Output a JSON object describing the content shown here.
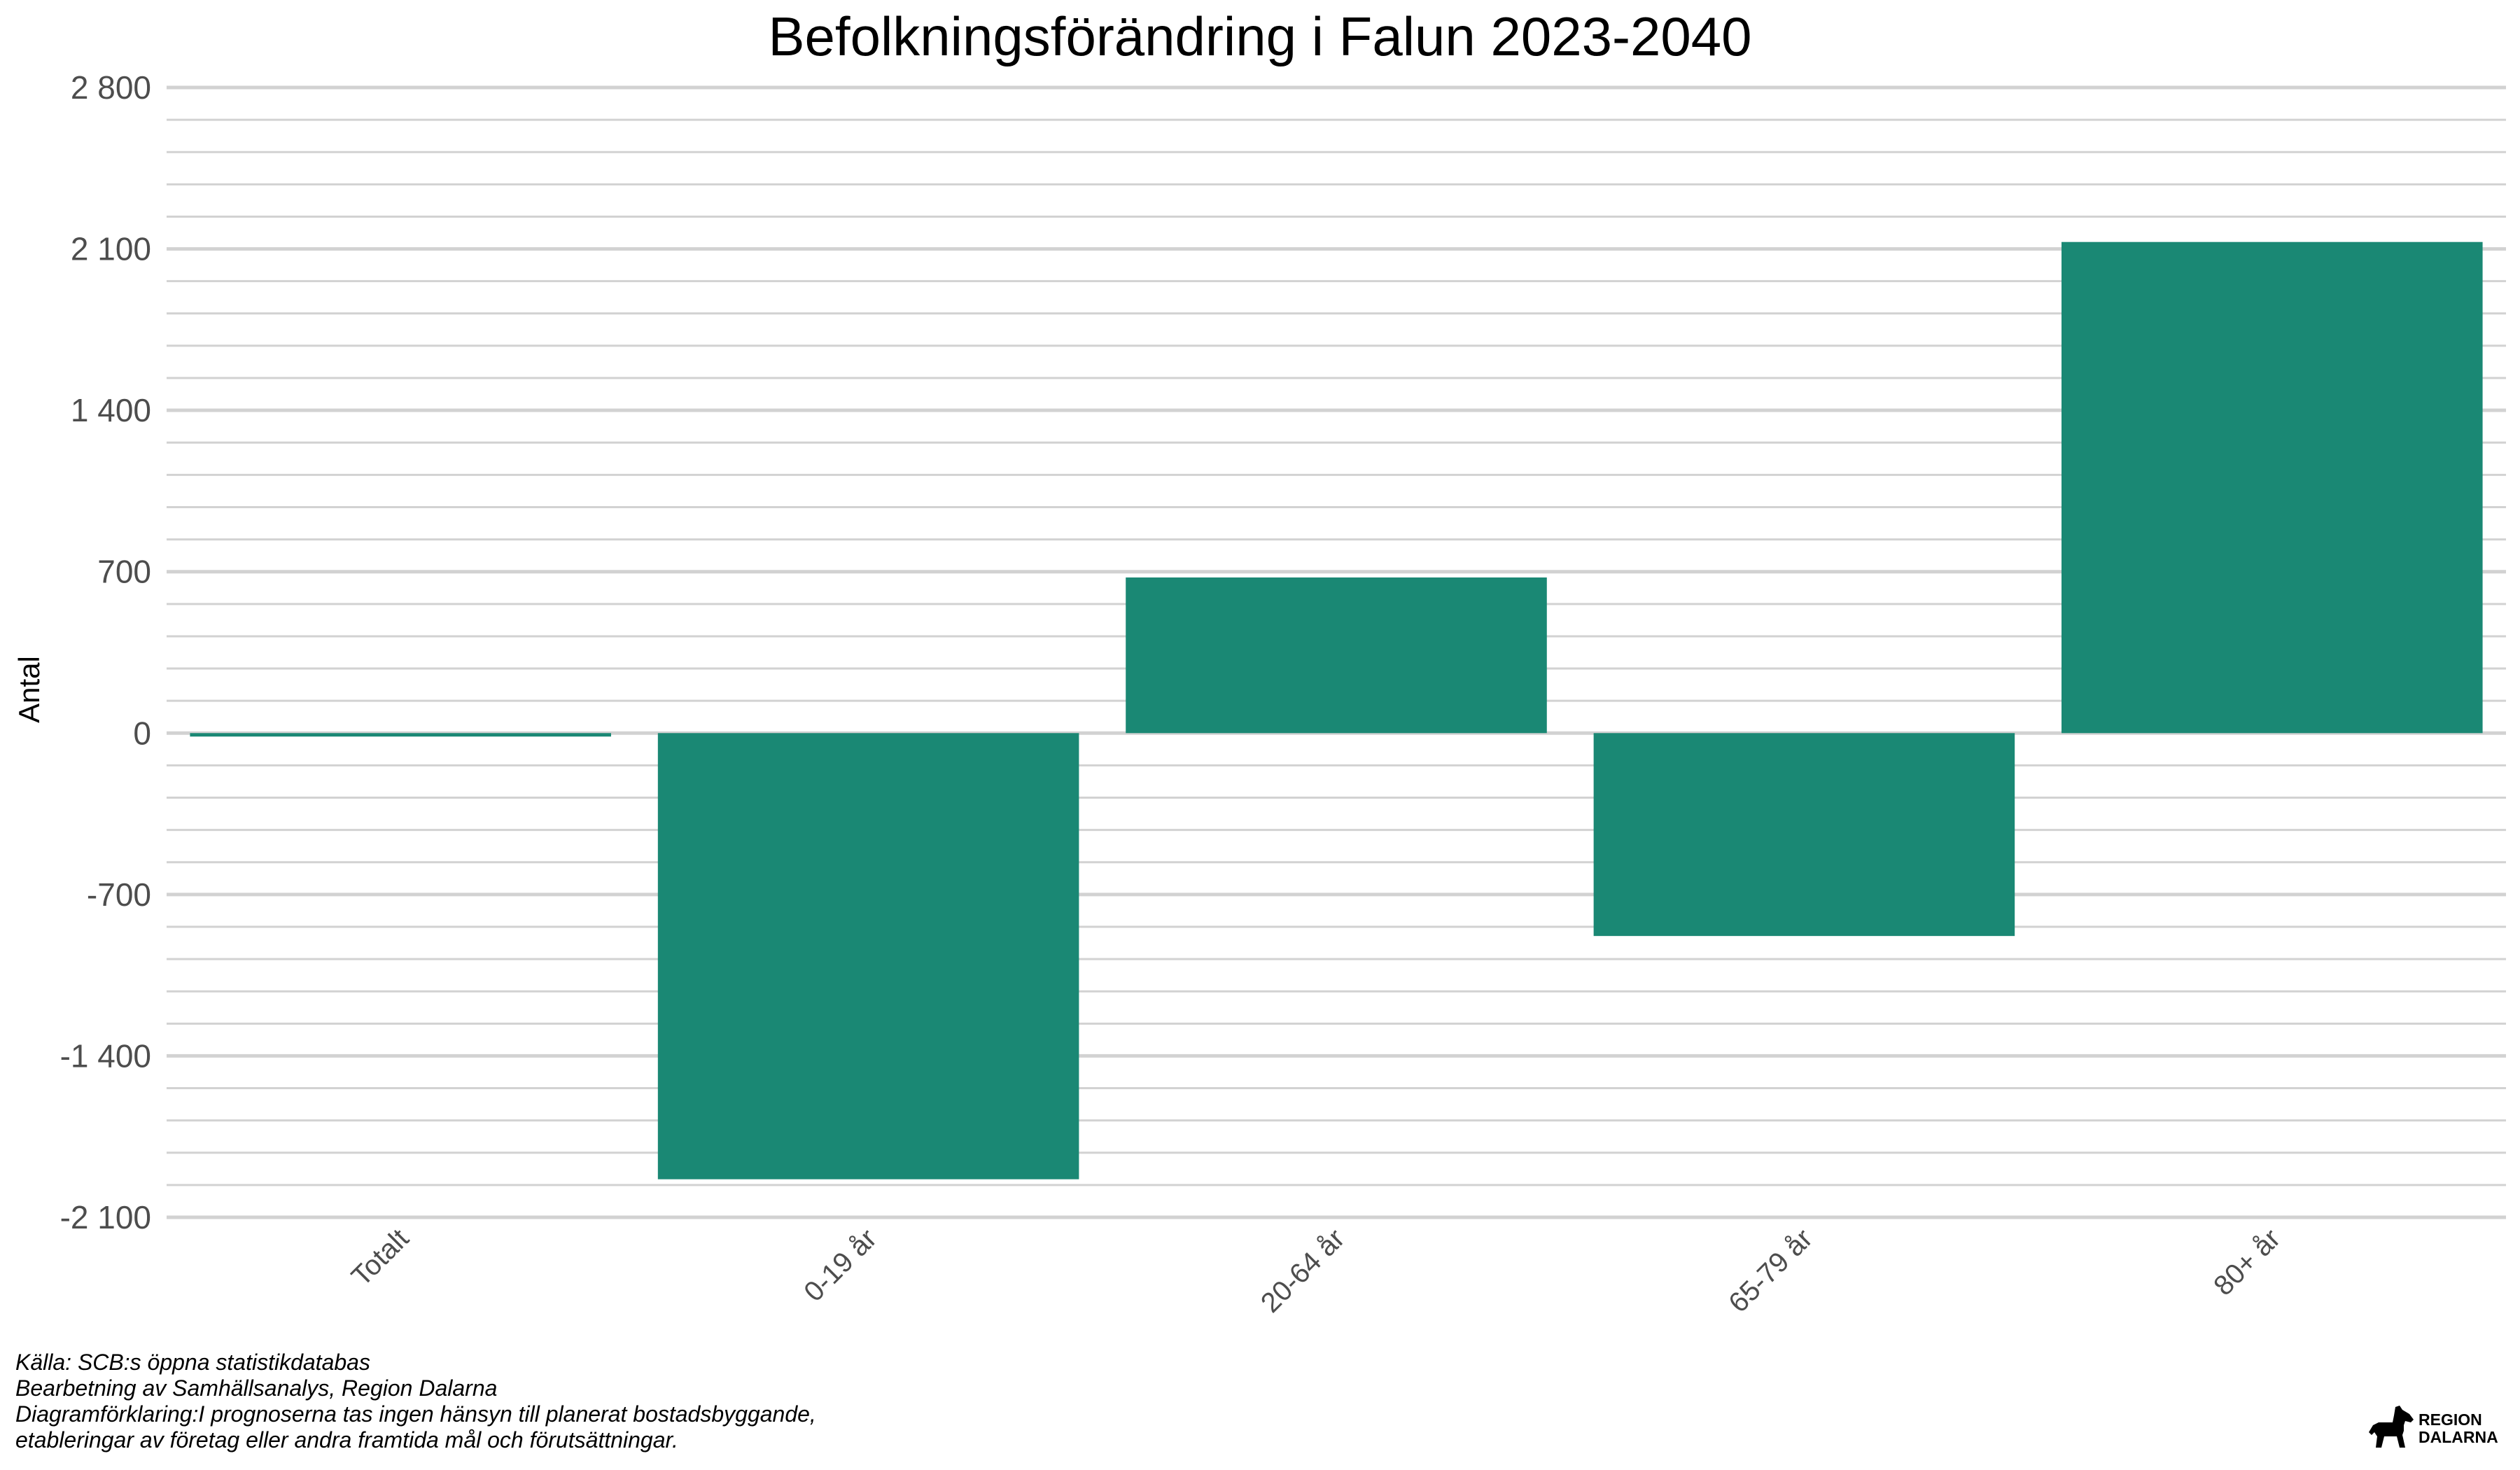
{
  "chart_data": {
    "type": "bar",
    "title": "Befolkningsförändring i Falun 2023-2040",
    "xlabel": "",
    "ylabel": "Antal",
    "categories": [
      "Totalt",
      "0-19 år",
      "20-64 år",
      "65-79 år",
      "80+ år"
    ],
    "values": [
      -15,
      -1935,
      675,
      -880,
      2130
    ],
    "ylim": [
      -2100,
      2800
    ],
    "yticks": [
      -2100,
      -1400,
      -700,
      0,
      700,
      1400,
      2100,
      2800
    ],
    "ytick_labels": [
      "-2 100",
      "-1 400",
      "-700",
      "0",
      "700",
      "1 400",
      "2 100",
      "2 800"
    ],
    "minor_grid_step": 140,
    "grid": true,
    "legend": "none",
    "bar_color": "#1a8874",
    "grid_color": "#d2d2d2"
  },
  "caption": {
    "lines": [
      "Källa: SCB:s öppna statistikdatabas",
      "Bearbetning av Samhällsanalys, Region Dalarna",
      "Diagramförklaring:I prognoserna tas ingen hänsyn till planerat bostadsbyggande,",
      "etableringar av företag eller andra framtida mål och förutsättningar."
    ]
  },
  "logo": {
    "line1": "REGION",
    "line2": "DALARNA",
    "icon": "dala-horse-icon"
  }
}
